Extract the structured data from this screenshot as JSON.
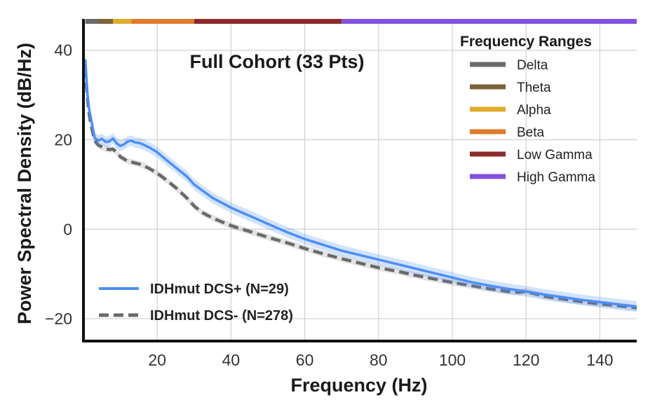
{
  "chart_data": {
    "type": "line",
    "title": "Full Cohort (33 Pts)",
    "xlabel": "Frequency (Hz)",
    "ylabel": "Power Spectral Density (dB/Hz)",
    "xlim": [
      0,
      150
    ],
    "ylim": [
      -25,
      47
    ],
    "xticks": [
      20,
      40,
      60,
      80,
      100,
      120,
      140
    ],
    "yticks": [
      40,
      20,
      0,
      -20
    ],
    "ytick_labels": [
      "40",
      "20",
      "0",
      "−20"
    ],
    "grid": true,
    "series": [
      {
        "name": "IDHmut DCS+ (N=29)",
        "color": "#4d8ef7",
        "style": "solid",
        "band": 1.2,
        "x": [
          0.5,
          1,
          1.5,
          2,
          3,
          4,
          5,
          6,
          7,
          8,
          9,
          10,
          11,
          12,
          13,
          14,
          15,
          16,
          18,
          20,
          22,
          25,
          28,
          30,
          32,
          35,
          40,
          45,
          50,
          55,
          60,
          65,
          70,
          75,
          80,
          85,
          90,
          95,
          100,
          105,
          110,
          115,
          120,
          125,
          130,
          135,
          140,
          145,
          150
        ],
        "y": [
          38,
          31,
          27,
          25,
          20.5,
          19.8,
          20.2,
          19.5,
          19.6,
          20.3,
          19.2,
          18.6,
          19.0,
          19.6,
          19.8,
          19.4,
          19.3,
          19.0,
          18.2,
          17.2,
          15.8,
          13.8,
          11.8,
          10.0,
          8.8,
          7.0,
          4.8,
          3.0,
          1.2,
          -0.6,
          -2.2,
          -3.5,
          -4.8,
          -5.8,
          -6.8,
          -7.8,
          -8.8,
          -9.8,
          -10.8,
          -11.8,
          -12.6,
          -13.3,
          -13.9,
          -14.6,
          -15.2,
          -15.8,
          -16.3,
          -16.8,
          -17.3
        ]
      },
      {
        "name": "IDHmut DCS- (N=278)",
        "color": "#6a6a6a",
        "style": "dashed",
        "band": 0.7,
        "x": [
          0.5,
          1,
          1.5,
          2,
          3,
          4,
          5,
          6,
          7,
          8,
          9,
          10,
          11,
          12,
          13,
          14,
          15,
          16,
          18,
          20,
          22,
          25,
          28,
          30,
          32,
          35,
          40,
          45,
          50,
          55,
          60,
          65,
          70,
          75,
          80,
          85,
          90,
          95,
          100,
          105,
          110,
          115,
          118,
          120,
          125,
          130,
          135,
          140,
          145,
          150
        ],
        "y": [
          36,
          30,
          26,
          23.5,
          19.8,
          18.8,
          18.4,
          18.0,
          17.8,
          17.9,
          17.2,
          16.2,
          15.7,
          15.2,
          15.0,
          14.8,
          14.6,
          14.3,
          13.5,
          12.5,
          11.3,
          9.3,
          7.0,
          5.2,
          3.8,
          2.5,
          0.8,
          -0.5,
          -1.8,
          -3.0,
          -4.3,
          -5.5,
          -6.6,
          -7.6,
          -8.6,
          -9.4,
          -10.3,
          -11.1,
          -11.9,
          -12.6,
          -13.3,
          -13.9,
          -14.1,
          -13.9,
          -15.0,
          -15.6,
          -16.2,
          -16.7,
          -17.1,
          -17.6
        ]
      }
    ],
    "frequency_bands": [
      {
        "name": "Delta",
        "range": [
          0.5,
          4
        ],
        "color": "#6b6b6b"
      },
      {
        "name": "Theta",
        "range": [
          4,
          8
        ],
        "color": "#7d6238"
      },
      {
        "name": "Alpha",
        "range": [
          8,
          13
        ],
        "color": "#e0ad2c"
      },
      {
        "name": "Beta",
        "range": [
          13,
          30
        ],
        "color": "#e07a2c"
      },
      {
        "name": "Low Gamma",
        "range": [
          30,
          70
        ],
        "color": "#8c2a2a"
      },
      {
        "name": "High Gamma",
        "range": [
          70,
          150
        ],
        "color": "#8152e0"
      }
    ],
    "legend_title": "Frequency Ranges",
    "legend_position": "top-right",
    "series_legend_position": "bottom-left"
  }
}
